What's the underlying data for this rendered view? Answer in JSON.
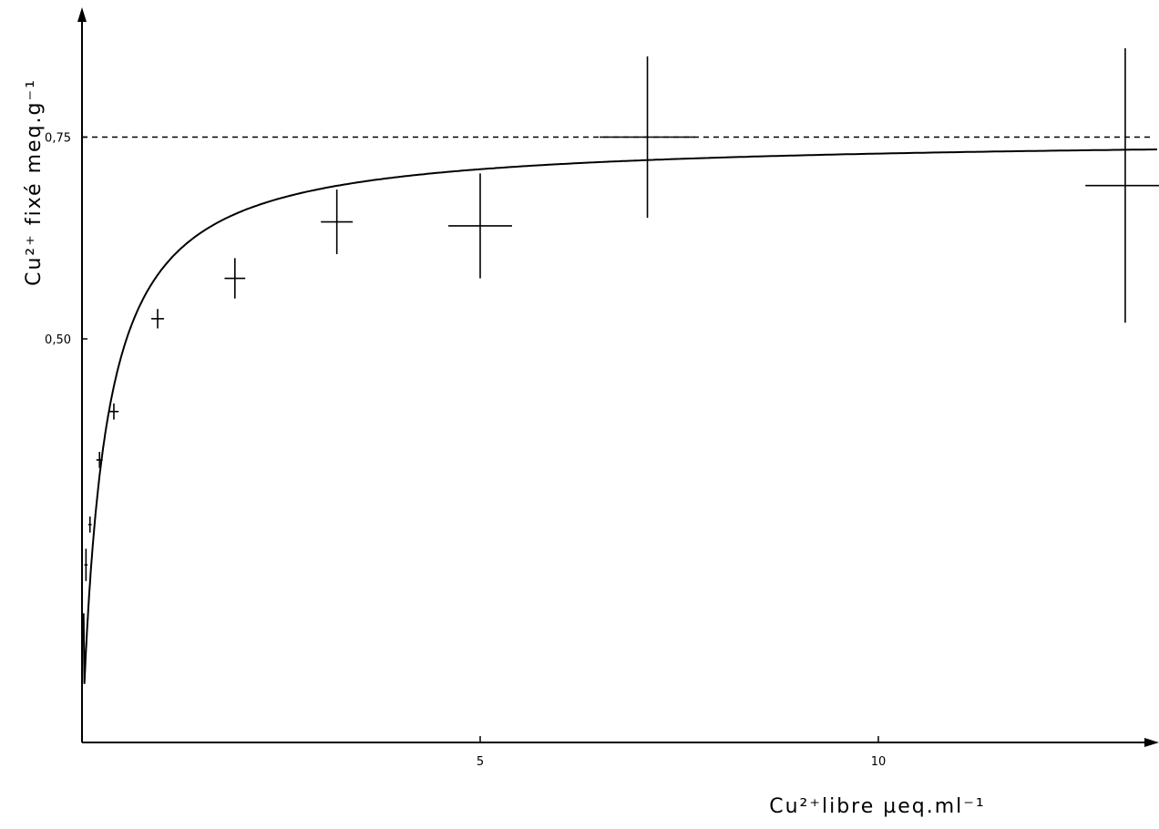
{
  "chart_data": {
    "type": "scatter",
    "title": "",
    "xlabel": "Cu²⁺libre µeq.ml⁻¹",
    "ylabel": "Cu²⁺ fixé meq.g⁻¹",
    "xlim": [
      0,
      13.5
    ],
    "ylim": [
      0,
      0.87
    ],
    "x_ticks": [
      {
        "value": 5,
        "label": "5"
      },
      {
        "value": 10,
        "label": "10"
      }
    ],
    "y_ticks": [
      {
        "value": 0.5,
        "label": "0,50"
      },
      {
        "value": 0.75,
        "label": "0,75"
      }
    ],
    "grid": false,
    "points": [
      {
        "x": 0.05,
        "y": 0.22,
        "xerr": 0.02,
        "yerr": 0.02
      },
      {
        "x": 0.1,
        "y": 0.27,
        "xerr": 0.02,
        "yerr": 0.01
      },
      {
        "x": 0.22,
        "y": 0.35,
        "xerr": 0.04,
        "yerr": 0.01
      },
      {
        "x": 0.4,
        "y": 0.41,
        "xerr": 0.06,
        "yerr": 0.01
      },
      {
        "x": 0.95,
        "y": 0.525,
        "xerr": 0.08,
        "yerr": 0.012
      },
      {
        "x": 1.92,
        "y": 0.575,
        "xerr": 0.13,
        "yerr": 0.025
      },
      {
        "x": 3.2,
        "y": 0.645,
        "xerr": 0.2,
        "yerr": 0.04
      },
      {
        "x": 5.0,
        "y": 0.64,
        "xerr": 0.4,
        "yerr": 0.065
      },
      {
        "x": 7.1,
        "y": 0.75,
        "xerr": 0.6,
        "yerr": 0.1
      },
      {
        "x": 13.1,
        "y": 0.69,
        "xerr": 0.5,
        "yerr": 0.17
      }
    ],
    "fit_curve": {
      "model": "langmuir",
      "qmax": 0.75,
      "k": 0.28
    },
    "asymptote": {
      "y": 0.75,
      "style": "dashed"
    }
  }
}
